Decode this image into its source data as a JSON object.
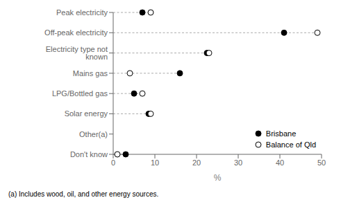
{
  "chart_data": {
    "type": "dot",
    "categories": [
      "Peak electricity",
      "Off-peak electricity",
      "Electricity type not known",
      "Mains gas",
      "LPG/Bottled gas",
      "Solar energy",
      "Other(a)",
      "Don't know"
    ],
    "series": [
      {
        "name": "Brisbane",
        "color": "#000000",
        "marker": "filled_circle",
        "values": [
          7.0,
          41.0,
          22.5,
          16.0,
          5.0,
          8.5,
          null,
          3.0
        ]
      },
      {
        "name": "Balance of Qld",
        "color": "#000000",
        "marker": "open_circle",
        "values": [
          9.0,
          49.0,
          23.0,
          4.0,
          7.0,
          9.0,
          null,
          1.0
        ]
      }
    ],
    "xlim": [
      0,
      50
    ],
    "xticks": [
      0,
      10,
      20,
      30,
      40,
      50
    ],
    "xlabel": "%",
    "annotations": [
      "(a) Includes wood, oil, and other energy sources."
    ],
    "line_style": "dashed",
    "color": "#aaaaaa",
    "legend": "lower right",
    "grid": false
  }
}
